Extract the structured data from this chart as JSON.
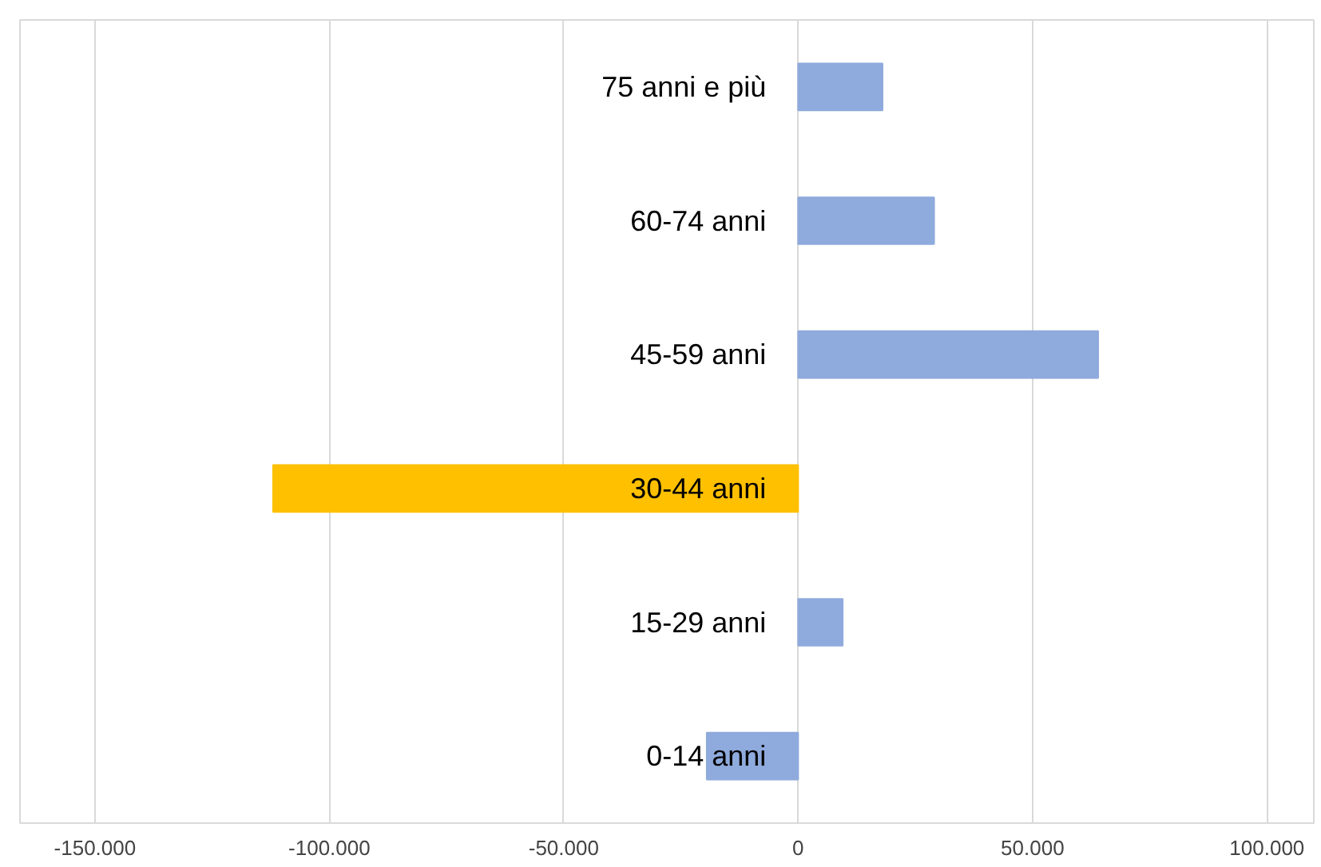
{
  "chart_data": {
    "type": "bar",
    "orientation": "horizontal",
    "categories": [
      "75 anni e più",
      "60-74 anni",
      "45-59 anni",
      "30-44 anni",
      "15-29 anni",
      "0-14 anni"
    ],
    "values": [
      18000,
      29000,
      64000,
      -112000,
      9500,
      -19500
    ],
    "colors": [
      "#8faadc",
      "#8faadc",
      "#8faadc",
      "#ffc000",
      "#8faadc",
      "#8faadc"
    ],
    "xlim": [
      -166000,
      110000
    ],
    "xticks": [
      {
        "value": -150000,
        "label": "-150.000"
      },
      {
        "value": -100000,
        "label": "-100.000"
      },
      {
        "value": -50000,
        "label": "-50.000"
      },
      {
        "value": 0,
        "label": "0"
      },
      {
        "value": 50000,
        "label": "50.000"
      },
      {
        "value": 100000,
        "label": "100.000"
      }
    ],
    "grid": "x"
  }
}
